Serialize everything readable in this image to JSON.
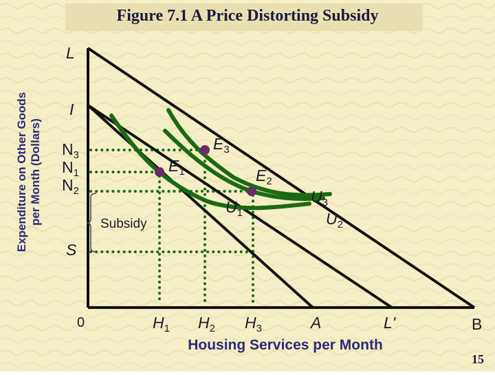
{
  "title": "Figure 7.1 A Price Distorting Subsidy",
  "y_axis_title": [
    "Expenditure on Other Goods",
    "per Month (Dollars)"
  ],
  "x_axis_title": "Housing Services per Month",
  "page_number": "15",
  "colors": {
    "background": "#f5efc6",
    "title_band": "#e6dcac",
    "axis_text": "#2a2a7a",
    "budget_lines": "#111111",
    "indifference_curves": "#1b6a12",
    "points": "#6a2b6a",
    "dotted_guides": "#1b6a12"
  },
  "labels": {
    "L": "L",
    "I": "I",
    "N3": {
      "base": "N",
      "sub": "3"
    },
    "N1": {
      "base": "N",
      "sub": "1"
    },
    "N2": {
      "base": "N",
      "sub": "2"
    },
    "S": "S",
    "origin": "0",
    "H1": {
      "base": "H",
      "sub": "1"
    },
    "H2": {
      "base": "H",
      "sub": "2"
    },
    "H3": {
      "base": "H",
      "sub": "3"
    },
    "A": "A",
    "Lprime": "L'",
    "B": "B",
    "E1": {
      "base": "E",
      "sub": "1"
    },
    "E2": {
      "base": "E",
      "sub": "2"
    },
    "E3": {
      "base": "E",
      "sub": "3"
    },
    "U1": {
      "base": "U",
      "sub": "1"
    },
    "U2": {
      "base": "U",
      "sub": "2"
    },
    "U3": {
      "base": "U",
      "sub": "3"
    },
    "subsidy": "Subsidy"
  }
}
